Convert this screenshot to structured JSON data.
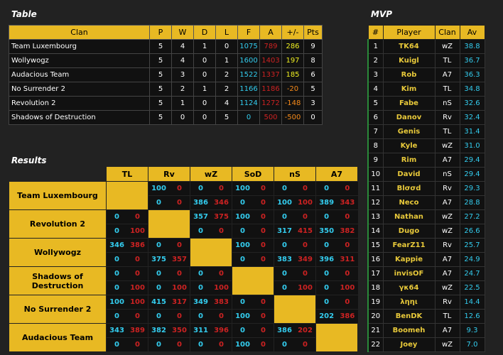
{
  "standings": {
    "title": "Table",
    "headers": [
      "Clan",
      "P",
      "W",
      "D",
      "L",
      "F",
      "A",
      "+/-",
      "Pts"
    ],
    "rows": [
      [
        "Team Luxembourg",
        "5",
        "4",
        "1",
        "0",
        "1075",
        "789",
        "286",
        "9"
      ],
      [
        "Wollywogz",
        "5",
        "4",
        "0",
        "1",
        "1600",
        "1403",
        "197",
        "8"
      ],
      [
        "Audacious Team",
        "5",
        "3",
        "0",
        "2",
        "1522",
        "1337",
        "185",
        "6"
      ],
      [
        "No Surrender 2",
        "5",
        "2",
        "1",
        "2",
        "1166",
        "1186",
        "-20",
        "5"
      ],
      [
        "Revolution 2",
        "5",
        "1",
        "0",
        "4",
        "1124",
        "1272",
        "-148",
        "3"
      ],
      [
        "Shadows of Destruction",
        "5",
        "0",
        "0",
        "5",
        "0",
        "500",
        "-500",
        "0"
      ]
    ]
  },
  "results": {
    "title": "Results",
    "columns": [
      "TL",
      "Rv",
      "wZ",
      "SoD",
      "nS",
      "A7"
    ],
    "teams": [
      {
        "name": "Team Luxembourg",
        "self": 0,
        "rows": [
          [
            null,
            null,
            "100",
            "0",
            "0",
            "0",
            "100",
            "0",
            "0",
            "0",
            "0",
            "0"
          ],
          [
            null,
            null,
            "0",
            "0",
            "386",
            "346",
            "0",
            "0",
            "100",
            "100",
            "389",
            "343"
          ]
        ]
      },
      {
        "name": "Revolution 2",
        "self": 1,
        "rows": [
          [
            "0",
            "0",
            null,
            null,
            "357",
            "375",
            "100",
            "0",
            "0",
            "0",
            "0",
            "0"
          ],
          [
            "0",
            "100",
            null,
            null,
            "0",
            "0",
            "0",
            "0",
            "317",
            "415",
            "350",
            "382"
          ]
        ]
      },
      {
        "name": "Wollywogz",
        "self": 2,
        "rows": [
          [
            "346",
            "386",
            "0",
            "0",
            null,
            null,
            "100",
            "0",
            "0",
            "0",
            "0",
            "0"
          ],
          [
            "0",
            "0",
            "375",
            "357",
            null,
            null,
            "0",
            "0",
            "383",
            "349",
            "396",
            "311"
          ]
        ]
      },
      {
        "name": "Shadows of Destruction",
        "self": 3,
        "rows": [
          [
            "0",
            "0",
            "0",
            "0",
            "0",
            "0",
            null,
            null,
            "0",
            "0",
            "0",
            "0"
          ],
          [
            "0",
            "100",
            "0",
            "100",
            "0",
            "100",
            null,
            null,
            "0",
            "100",
            "0",
            "100"
          ]
        ]
      },
      {
        "name": "No Surrender 2",
        "self": 4,
        "rows": [
          [
            "100",
            "100",
            "415",
            "317",
            "349",
            "383",
            "0",
            "0",
            null,
            null,
            "0",
            "0"
          ],
          [
            "0",
            "0",
            "0",
            "0",
            "0",
            "0",
            "100",
            "0",
            null,
            null,
            "202",
            "386"
          ]
        ]
      },
      {
        "name": "Audacious Team",
        "self": 5,
        "rows": [
          [
            "343",
            "389",
            "382",
            "350",
            "311",
            "396",
            "0",
            "0",
            "386",
            "202",
            null,
            null
          ],
          [
            "0",
            "0",
            "0",
            "0",
            "0",
            "0",
            "100",
            "0",
            "0",
            "0",
            null,
            null
          ]
        ]
      }
    ]
  },
  "mvp": {
    "title": "MVP",
    "headers": [
      "#",
      "Player",
      "Clan",
      "Av"
    ],
    "rows": [
      [
        "1",
        "TK64",
        "wZ",
        "38.8"
      ],
      [
        "2",
        "Kuigl",
        "TL",
        "36.7"
      ],
      [
        "3",
        "Rob",
        "A7",
        "36.3"
      ],
      [
        "4",
        "Kim",
        "TL",
        "34.8"
      ],
      [
        "5",
        "Fabe",
        "nS",
        "32.6"
      ],
      [
        "6",
        "Danov",
        "Rv",
        "32.4"
      ],
      [
        "7",
        "Genis",
        "TL",
        "31.4"
      ],
      [
        "8",
        "Kyle",
        "wZ",
        "31.0"
      ],
      [
        "9",
        "Rim",
        "A7",
        "29.4"
      ],
      [
        "10",
        "David",
        "nS",
        "29.4"
      ],
      [
        "11",
        "Blσσd",
        "Rv",
        "29.3"
      ],
      [
        "12",
        "Neco",
        "A7",
        "28.8"
      ],
      [
        "13",
        "Nathan",
        "wZ",
        "27.2"
      ],
      [
        "14",
        "Dugo",
        "wZ",
        "26.6"
      ],
      [
        "15",
        "FearZ11",
        "Rv",
        "25.7"
      ],
      [
        "16",
        "Kappie",
        "A7",
        "24.9"
      ],
      [
        "17",
        "invisOF",
        "A7",
        "24.7"
      ],
      [
        "18",
        "γκ64",
        "wZ",
        "22.5"
      ],
      [
        "19",
        "ληηι",
        "Rv",
        "14.4"
      ],
      [
        "20",
        "BenDK",
        "TL",
        "12.6"
      ],
      [
        "21",
        "Boomeh",
        "A7",
        "9.3"
      ],
      [
        "22",
        "Joey",
        "wZ",
        "7.0"
      ]
    ]
  },
  "colors": {
    "header_bg": "#e8b923",
    "cell_bg": "#111111",
    "page_bg": "#222222",
    "for_color": "#33ccee",
    "against_color": "#cc2222",
    "diff_positive": "#eeee22",
    "diff_negative": "#f58a1a",
    "mvp_player_color": "#e8c93a"
  }
}
